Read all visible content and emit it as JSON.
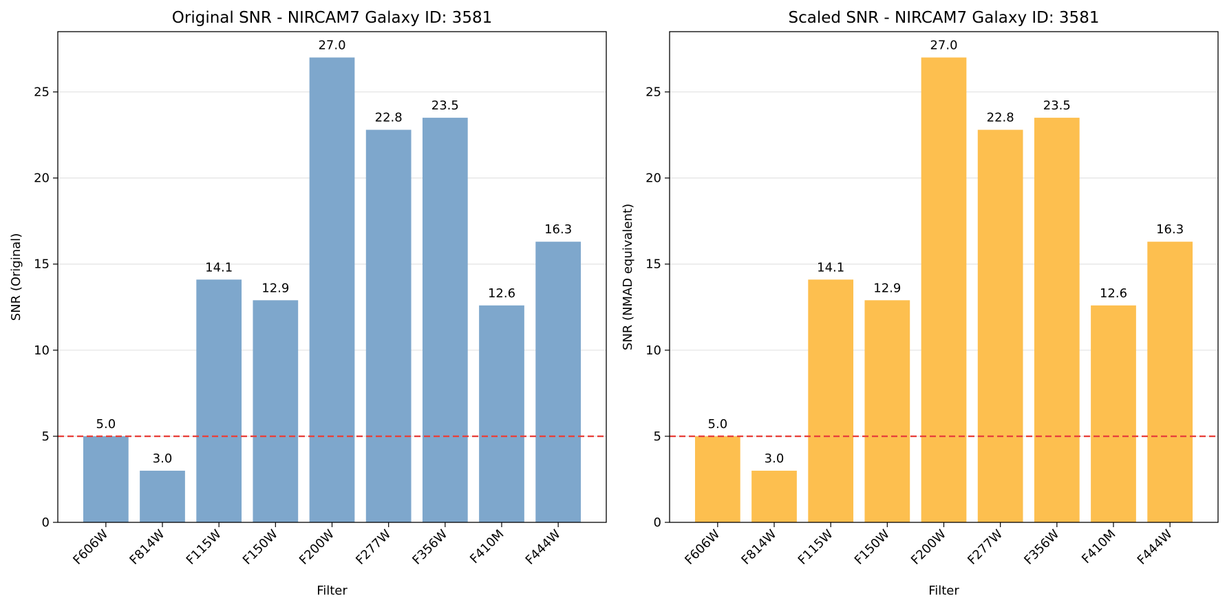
{
  "chart_data": [
    {
      "type": "bar",
      "title": "Original SNR - NIRCAM7 Galaxy ID: 3581",
      "xlabel": "Filter",
      "ylabel": "SNR (Original)",
      "categories": [
        "F606W",
        "F814W",
        "F115W",
        "F150W",
        "F200W",
        "F277W",
        "F356W",
        "F410M",
        "F444W"
      ],
      "values": [
        5.0,
        3.0,
        14.1,
        12.9,
        27.0,
        22.8,
        23.5,
        12.6,
        16.3
      ],
      "value_labels": [
        "5.0",
        "3.0",
        "14.1",
        "12.9",
        "27.0",
        "22.8",
        "23.5",
        "12.6",
        "16.3"
      ],
      "ylim": [
        0,
        28.5
      ],
      "yticks": [
        0,
        5,
        10,
        15,
        20,
        25
      ],
      "threshold": 5,
      "bar_color": "#7ea7cc",
      "threshold_color": "#e8413b",
      "grid": "horizontal"
    },
    {
      "type": "bar",
      "title": "Scaled SNR - NIRCAM7 Galaxy ID: 3581",
      "xlabel": "Filter",
      "ylabel": "SNR (NMAD equivalent)",
      "categories": [
        "F606W",
        "F814W",
        "F115W",
        "F150W",
        "F200W",
        "F277W",
        "F356W",
        "F410M",
        "F444W"
      ],
      "values": [
        5.0,
        3.0,
        14.1,
        12.9,
        27.0,
        22.8,
        23.5,
        12.6,
        16.3
      ],
      "value_labels": [
        "5.0",
        "3.0",
        "14.1",
        "12.9",
        "27.0",
        "22.8",
        "23.5",
        "12.6",
        "16.3"
      ],
      "ylim": [
        0,
        28.5
      ],
      "yticks": [
        0,
        5,
        10,
        15,
        20,
        25
      ],
      "threshold": 5,
      "bar_color": "#fdbf4f",
      "threshold_color": "#e8413b",
      "grid": "horizontal"
    }
  ]
}
